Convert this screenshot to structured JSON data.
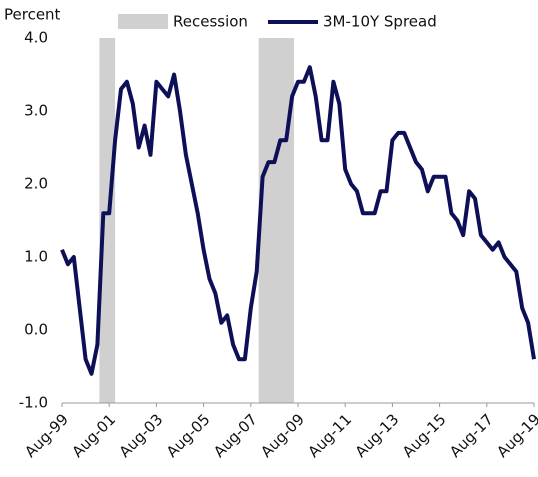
{
  "chart_data": {
    "type": "line",
    "ylabel": "Percent",
    "categories": [
      "Aug-99",
      "Nov-99",
      "Feb-00",
      "May-00",
      "Aug-00",
      "Nov-00",
      "Feb-01",
      "May-01",
      "Aug-01",
      "Nov-01",
      "Feb-02",
      "May-02",
      "Aug-02",
      "Nov-02",
      "Feb-03",
      "May-03",
      "Aug-03",
      "Nov-03",
      "Feb-04",
      "May-04",
      "Aug-04",
      "Nov-04",
      "Feb-05",
      "May-05",
      "Aug-05",
      "Nov-05",
      "Feb-06",
      "May-06",
      "Aug-06",
      "Nov-06",
      "Feb-07",
      "May-07",
      "Aug-07",
      "Nov-07",
      "Feb-08",
      "May-08",
      "Aug-08",
      "Nov-08",
      "Feb-09",
      "May-09",
      "Aug-09",
      "Nov-09",
      "Feb-10",
      "May-10",
      "Aug-10",
      "Nov-10",
      "Feb-11",
      "May-11",
      "Aug-11",
      "Nov-11",
      "Feb-12",
      "May-12",
      "Aug-12",
      "Nov-12",
      "Feb-13",
      "May-13",
      "Aug-13",
      "Nov-13",
      "Feb-14",
      "May-14",
      "Aug-14",
      "Nov-14",
      "Feb-15",
      "May-15",
      "Aug-15",
      "Nov-15",
      "Feb-16",
      "May-16",
      "Aug-16",
      "Nov-16",
      "Feb-17",
      "May-17",
      "Aug-17",
      "Nov-17",
      "Feb-18",
      "May-18",
      "Aug-18",
      "Nov-18",
      "Feb-19",
      "May-19",
      "Aug-19"
    ],
    "series": [
      {
        "name": "3M-10Y Spread",
        "color": "#0d1057",
        "values": [
          1.1,
          0.9,
          1.0,
          0.3,
          -0.4,
          -0.6,
          -0.2,
          1.6,
          1.6,
          2.6,
          3.3,
          3.4,
          3.1,
          2.5,
          2.8,
          2.4,
          3.4,
          3.3,
          3.2,
          3.5,
          3.0,
          2.4,
          2.0,
          1.6,
          1.1,
          0.7,
          0.5,
          0.1,
          0.2,
          -0.2,
          -0.4,
          -0.4,
          0.3,
          0.8,
          2.1,
          2.3,
          2.3,
          2.6,
          2.6,
          3.2,
          3.4,
          3.4,
          3.6,
          3.2,
          2.6,
          2.6,
          3.4,
          3.1,
          2.2,
          2.0,
          1.9,
          1.6,
          1.6,
          1.6,
          1.9,
          1.9,
          2.6,
          2.7,
          2.7,
          2.5,
          2.3,
          2.2,
          1.9,
          2.1,
          2.1,
          2.1,
          1.6,
          1.5,
          1.3,
          1.9,
          1.8,
          1.3,
          1.2,
          1.1,
          1.2,
          1.0,
          0.9,
          0.8,
          0.3,
          0.1,
          -0.4
        ]
      }
    ],
    "recessions": {
      "name": "Recession",
      "color": "#d0d0d0",
      "periods": [
        [
          "Mar-01",
          "Nov-01"
        ],
        [
          "Dec-07",
          "Jun-09"
        ]
      ]
    },
    "xlim": [
      "Aug-99",
      "Aug-19"
    ],
    "xticks": [
      "Aug-99",
      "Aug-01",
      "Aug-03",
      "Aug-05",
      "Aug-07",
      "Aug-09",
      "Aug-11",
      "Aug-13",
      "Aug-15",
      "Aug-17",
      "Aug-19"
    ],
    "ylim": [
      -1,
      4
    ],
    "yticks": [
      {
        "value": -1,
        "label": "-1.0"
      },
      {
        "value": 0,
        "label": "0.0"
      },
      {
        "value": 1,
        "label": "1.0"
      },
      {
        "value": 2,
        "label": "2.0"
      },
      {
        "value": 3,
        "label": "3.0"
      },
      {
        "value": 4,
        "label": "4.0"
      }
    ],
    "grid": false,
    "legend": "top"
  }
}
